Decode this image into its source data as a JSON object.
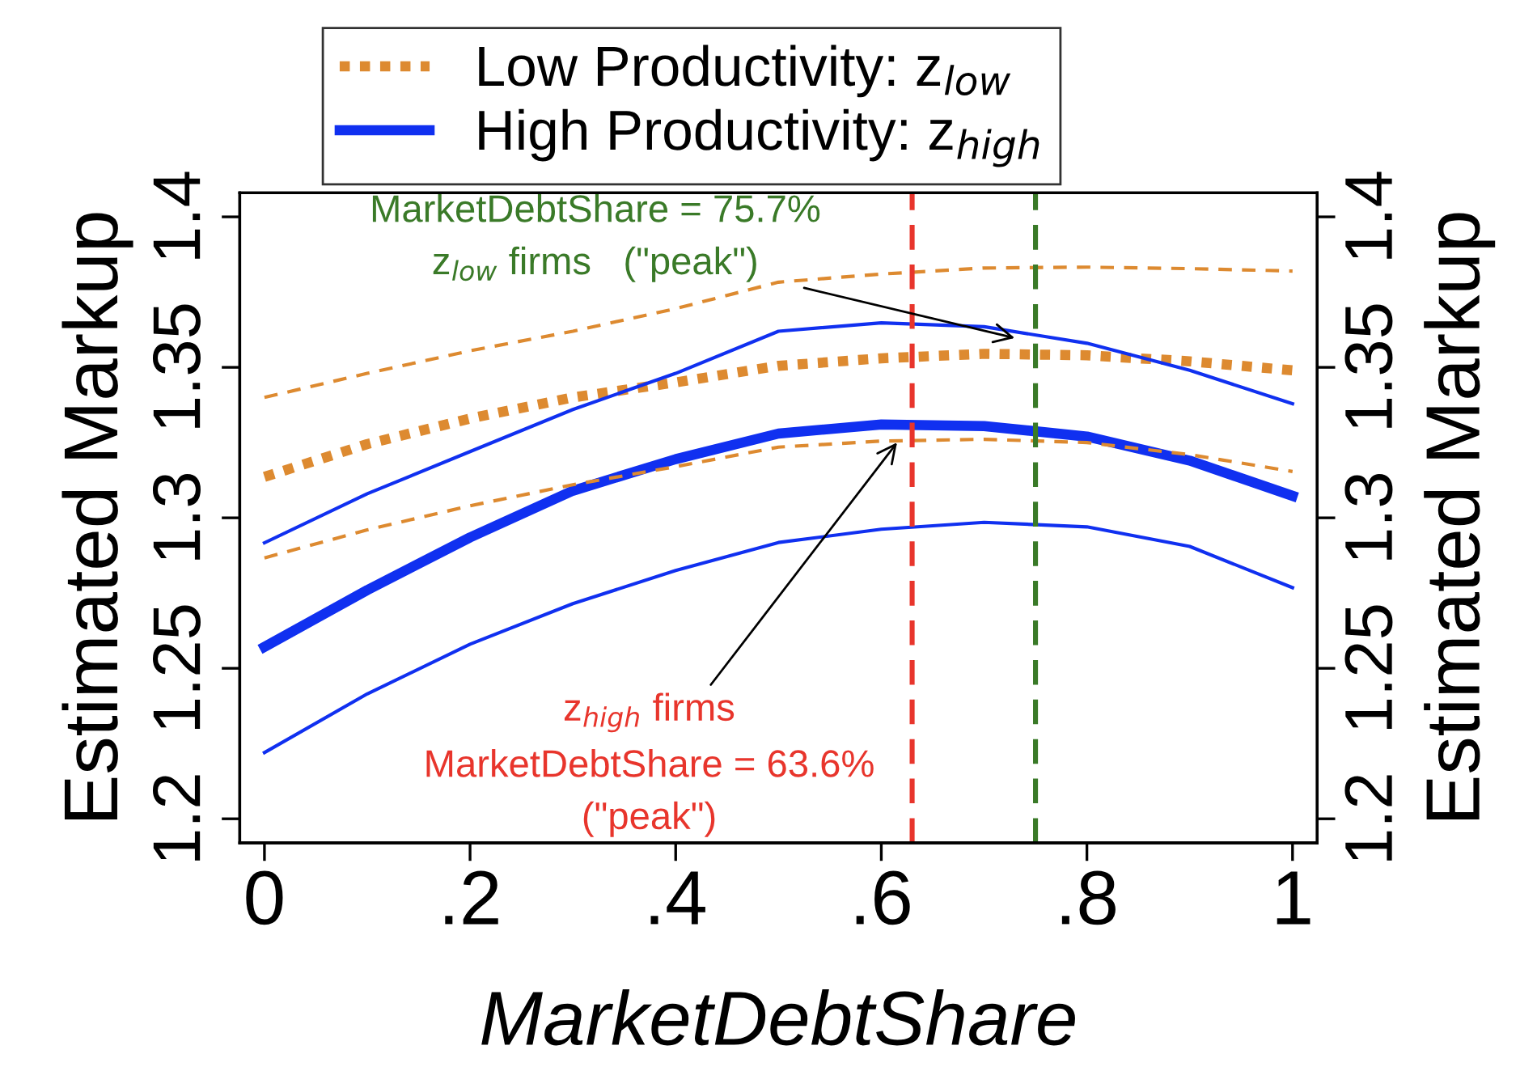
{
  "chart_data": {
    "type": "line",
    "xlabel": "MarketDebtShare",
    "ylabel": "Estimated Markup",
    "y2label": "Estimated Markup",
    "x": [
      0,
      0.1,
      0.2,
      0.3,
      0.4,
      0.5,
      0.6,
      0.7,
      0.8,
      0.9,
      1
    ],
    "series": [
      {
        "name": "Low Productivity: z$_{low}$",
        "color": "#dd8a30",
        "line_style": "dotted",
        "values": [
          1.3136,
          1.3245,
          1.333,
          1.34,
          1.345,
          1.3505,
          1.353,
          1.3545,
          1.354,
          1.352,
          1.349
        ]
      },
      {
        "name": "High Productivity: z$_{high}$",
        "color": "#1030f0",
        "line_style": "solid",
        "values": [
          1.2571,
          1.276,
          1.2935,
          1.309,
          1.3195,
          1.328,
          1.331,
          1.3305,
          1.327,
          1.319,
          1.3073
        ]
      },
      {
        "color": "#dd8a30",
        "line_style": "dashed",
        "values": [
          1.34,
          1.348,
          1.3555,
          1.362,
          1.3695,
          1.3783,
          1.381,
          1.383,
          1.3833,
          1.3828,
          1.382
        ]
      },
      {
        "color": "#dd8a30",
        "line_style": "dashed",
        "values": [
          1.2867,
          1.296,
          1.304,
          1.311,
          1.317,
          1.3235,
          1.3255,
          1.3261,
          1.325,
          1.321,
          1.3154
        ]
      },
      {
        "color": "#1030f0",
        "line_style": "solid",
        "values": [
          1.2917,
          1.308,
          1.322,
          1.336,
          1.348,
          1.362,
          1.3648,
          1.3635,
          1.358,
          1.349,
          1.3379
        ]
      },
      {
        "color": "#1030f0",
        "line_style": "solid",
        "values": [
          1.222,
          1.2415,
          1.258,
          1.2715,
          1.2825,
          1.2918,
          1.2962,
          1.2985,
          1.297,
          1.2905,
          1.2768
        ]
      }
    ],
    "xlim": [
      -0.024,
      1.024
    ],
    "xticks": [
      0,
      {
        "value": 0.2,
        "label": ".2"
      },
      {
        "value": 0.4,
        "label": ".4"
      },
      {
        "value": 0.6,
        "label": ".6"
      },
      {
        "value": 0.8,
        "label": ".8"
      },
      1
    ],
    "ylim": [
      1.192,
      1.408
    ],
    "yticks": [
      1.2,
      1.25,
      1.3,
      1.35,
      1.4
    ],
    "y2lim": [
      1.192,
      1.408
    ],
    "y2ticks": [
      1.2,
      1.25,
      1.3,
      1.35,
      1.4
    ],
    "ref_lines": [
      {
        "axis": "x",
        "value": 0.63,
        "color": "#e8352c",
        "line_style": "dashed"
      },
      {
        "axis": "x",
        "value": 0.75,
        "color": "#3a7a28",
        "line_style": "dashed"
      }
    ],
    "annotations": [
      {
        "text": "MarketDebtShare = 75.7%\nz$_{low}$ firms   (\"peak\")",
        "x": 0.734,
        "y": 1.3594
      },
      {
        "text": "z$_{high}$ firms\nMarketDebtShare = 63.6%\n(\"peak\")",
        "x": 0.618,
        "y": 1.3262
      }
    ],
    "legend": "top",
    "grid": false
  }
}
